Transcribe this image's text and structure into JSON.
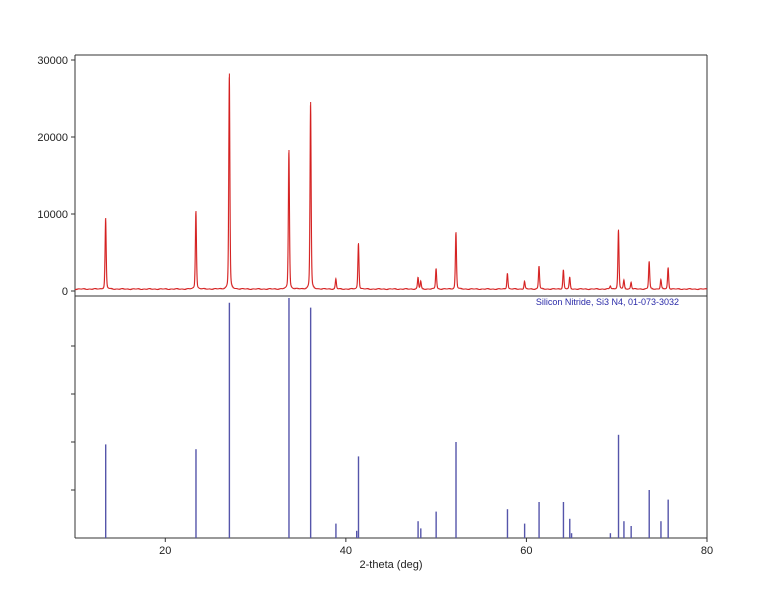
{
  "chart_data": [
    {
      "type": "line",
      "panel": "measured pattern",
      "series": [
        {
          "color": "#d42020"
        }
      ],
      "xlim": [
        10,
        80
      ],
      "ylim": [
        0,
        30000
      ],
      "yticks": [
        0,
        10000,
        20000,
        30000
      ],
      "ytick_labels": [
        "0",
        "10000",
        "20000",
        "30000"
      ],
      "baseline": 250,
      "peaks": [
        {
          "x": 13.4,
          "y": 9200
        },
        {
          "x": 23.4,
          "y": 10200
        },
        {
          "x": 27.1,
          "y": 28000
        },
        {
          "x": 33.7,
          "y": 18100
        },
        {
          "x": 36.1,
          "y": 24300
        },
        {
          "x": 38.9,
          "y": 1300
        },
        {
          "x": 41.4,
          "y": 6000
        },
        {
          "x": 48.0,
          "y": 1500
        },
        {
          "x": 48.3,
          "y": 1000
        },
        {
          "x": 50.0,
          "y": 2700
        },
        {
          "x": 52.2,
          "y": 7400
        },
        {
          "x": 57.9,
          "y": 2100
        },
        {
          "x": 59.8,
          "y": 1000
        },
        {
          "x": 61.4,
          "y": 3000
        },
        {
          "x": 64.1,
          "y": 2500
        },
        {
          "x": 64.8,
          "y": 1500
        },
        {
          "x": 69.3,
          "y": 400
        },
        {
          "x": 70.2,
          "y": 7700
        },
        {
          "x": 70.8,
          "y": 1100
        },
        {
          "x": 71.6,
          "y": 900
        },
        {
          "x": 73.6,
          "y": 3600
        },
        {
          "x": 74.9,
          "y": 1200
        },
        {
          "x": 75.7,
          "y": 2800
        }
      ],
      "grid": false,
      "legend": "none"
    },
    {
      "type": "bar",
      "panel": "reference pattern",
      "annotation": "Silicon Nitride, Si3 N4, 01-073-3032",
      "series": [
        {
          "color": "#5555aa"
        }
      ],
      "x": [
        13.4,
        23.4,
        27.1,
        33.7,
        36.1,
        38.9,
        41.2,
        41.4,
        48.0,
        48.3,
        50.0,
        52.2,
        57.9,
        59.8,
        61.4,
        64.1,
        64.8,
        65.0,
        69.3,
        70.2,
        70.8,
        71.6,
        73.6,
        74.9,
        75.7
      ],
      "values": [
        39,
        37,
        98,
        100,
        96,
        6,
        3,
        34,
        7,
        4,
        11,
        40,
        12,
        6,
        15,
        15,
        8,
        2,
        2,
        43,
        7,
        5,
        20,
        7,
        16
      ],
      "ylim": [
        0,
        100
      ],
      "xlim": [
        10,
        80
      ],
      "xticks": [
        20,
        40,
        60,
        80
      ],
      "xtick_labels": [
        "20",
        "40",
        "60",
        "80"
      ],
      "xlabel": "2-theta (deg)"
    }
  ]
}
